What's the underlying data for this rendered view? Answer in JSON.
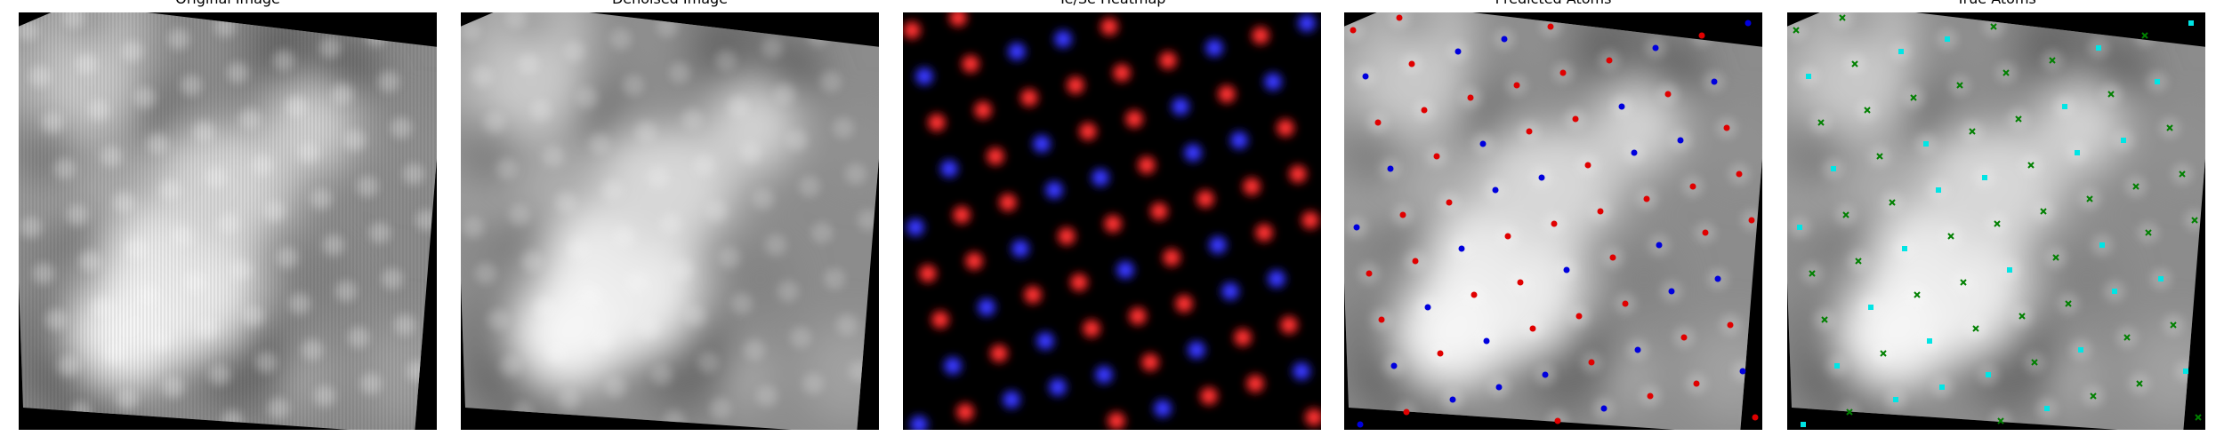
{
  "panels": [
    {
      "title": "Original Image"
    },
    {
      "title": "Denoised Image"
    },
    {
      "title": "Te/Se Heatmap"
    },
    {
      "title": "Predicted Atoms"
    },
    {
      "title": "True Atoms"
    }
  ]
}
